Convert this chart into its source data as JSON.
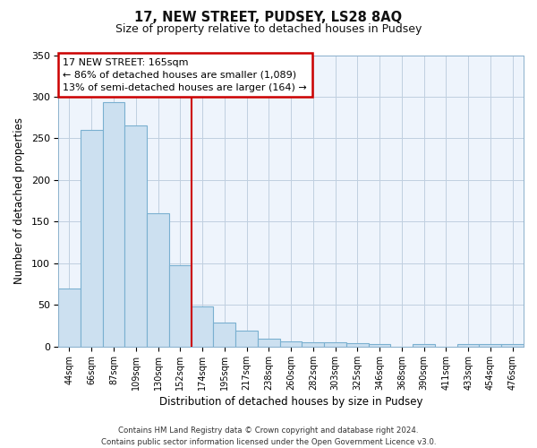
{
  "title": "17, NEW STREET, PUDSEY, LS28 8AQ",
  "subtitle": "Size of property relative to detached houses in Pudsey",
  "xlabel": "Distribution of detached houses by size in Pudsey",
  "ylabel": "Number of detached properties",
  "bar_labels": [
    "44sqm",
    "66sqm",
    "87sqm",
    "109sqm",
    "130sqm",
    "152sqm",
    "174sqm",
    "195sqm",
    "217sqm",
    "238sqm",
    "260sqm",
    "282sqm",
    "303sqm",
    "325sqm",
    "346sqm",
    "368sqm",
    "390sqm",
    "411sqm",
    "433sqm",
    "454sqm",
    "476sqm"
  ],
  "bar_values": [
    70,
    260,
    293,
    265,
    160,
    98,
    48,
    29,
    19,
    9,
    6,
    5,
    5,
    4,
    3,
    0,
    3,
    0,
    3,
    3,
    3
  ],
  "bar_color": "#cce0f0",
  "bar_edge_color": "#7ab0d0",
  "vline_x_index": 6,
  "vline_color": "#cc0000",
  "ylim": [
    0,
    350
  ],
  "yticks": [
    0,
    50,
    100,
    150,
    200,
    250,
    300,
    350
  ],
  "annotation_title": "17 NEW STREET: 165sqm",
  "annotation_line1": "← 86% of detached houses are smaller (1,089)",
  "annotation_line2": "13% of semi-detached houses are larger (164) →",
  "annotation_box_color": "#ffffff",
  "annotation_box_edge": "#cc0000",
  "footer_line1": "Contains HM Land Registry data © Crown copyright and database right 2024.",
  "footer_line2": "Contains public sector information licensed under the Open Government Licence v3.0.",
  "background_color": "#ffffff",
  "plot_bg_color": "#eef4fc",
  "grid_color": "#c0cfe0"
}
